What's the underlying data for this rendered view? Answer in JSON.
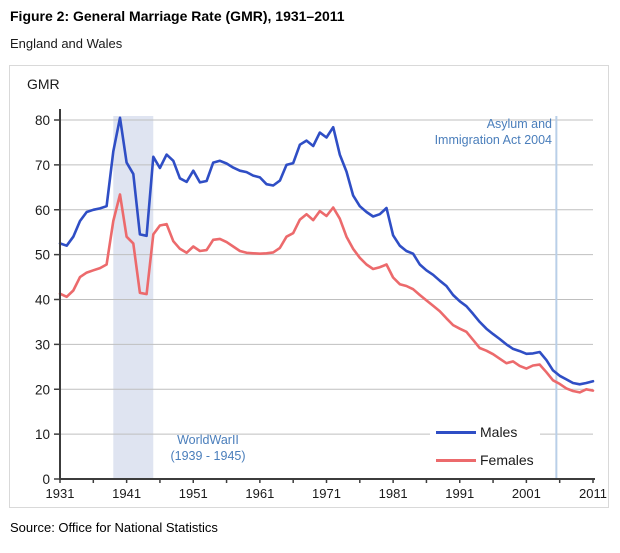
{
  "header": {
    "title": "Figure 2: General Marriage Rate (GMR), 1931–2011",
    "subtitle": "England and Wales"
  },
  "footer": {
    "source": "Source: Office for National Statistics"
  },
  "chart_data": {
    "type": "line",
    "ylabel": "GMR",
    "xlabel": "",
    "ylim": [
      0,
      80
    ],
    "ytick_interval": 10,
    "x_start": 1931,
    "x_end": 2011,
    "xticks_labeled": [
      1931,
      1941,
      1951,
      1961,
      1971,
      1981,
      1991,
      2001,
      2011
    ],
    "xtick_minor_interval": 5,
    "grid": "horizontal",
    "legend_position": "inside-bottom-right",
    "series": [
      {
        "name": "Males",
        "color": "#2f4ec5",
        "values": [
          52.5,
          52.0,
          54.0,
          57.5,
          59.5,
          60.0,
          60.3,
          60.8,
          73.0,
          80.5,
          70.5,
          68.0,
          54.5,
          54.2,
          71.8,
          69.3,
          72.3,
          70.9,
          67.0,
          66.2,
          68.7,
          66.1,
          66.4,
          70.5,
          70.9,
          70.3,
          69.4,
          68.7,
          68.4,
          67.6,
          67.2,
          65.7,
          65.4,
          66.5,
          70.0,
          70.4,
          74.5,
          75.4,
          74.2,
          77.2,
          76.1,
          78.4,
          72.3,
          68.5,
          63.2,
          60.8,
          59.5,
          58.5,
          59.0,
          60.4,
          54.3,
          52.0,
          50.8,
          50.2,
          47.8,
          46.5,
          45.5,
          44.2,
          43.0,
          41.0,
          39.6,
          38.5,
          36.8,
          35.0,
          33.5,
          32.3,
          31.2,
          30.0,
          29.0,
          28.5,
          27.9,
          28.0,
          28.3,
          26.5,
          24.2,
          23.0,
          22.2,
          21.4,
          21.1,
          21.4,
          21.8
        ]
      },
      {
        "name": "Females",
        "color": "#ec6a6c",
        "values": [
          41.3,
          40.6,
          42.0,
          45.0,
          46.0,
          46.5,
          47.0,
          47.8,
          57.5,
          63.4,
          54.0,
          52.5,
          41.5,
          41.2,
          54.5,
          56.5,
          56.8,
          53.0,
          51.3,
          50.4,
          51.8,
          50.8,
          51.0,
          53.3,
          53.5,
          52.8,
          51.8,
          50.8,
          50.4,
          50.3,
          50.2,
          50.3,
          50.5,
          51.5,
          54.0,
          54.8,
          57.8,
          59.0,
          57.7,
          59.7,
          58.6,
          60.5,
          58.0,
          54.0,
          51.3,
          49.3,
          47.8,
          46.8,
          47.2,
          47.8,
          44.9,
          43.4,
          43.0,
          42.3,
          41.0,
          39.8,
          38.6,
          37.4,
          35.8,
          34.3,
          33.5,
          32.8,
          31.0,
          29.2,
          28.6,
          27.8,
          26.8,
          25.8,
          26.2,
          25.2,
          24.6,
          25.3,
          25.5,
          23.8,
          22.0,
          21.2,
          20.2,
          19.6,
          19.3,
          20.0,
          19.7
        ]
      }
    ],
    "annotations": {
      "band": {
        "label_lines": [
          "WorldWarII",
          "(1939 - 1945)"
        ],
        "from_year": 1939,
        "to_year": 1945,
        "color": "#dfe4f1"
      },
      "vline": {
        "label_lines": [
          "Asylum and",
          "Immigration Act 2004"
        ],
        "year": 2005.5,
        "color": "#b9cfe8"
      }
    },
    "colors": {
      "grid": "#bfbfbf",
      "axis": "#3c3c3c",
      "annotation_text": "#4a7ebb",
      "tick_label": "#1a1a1a"
    }
  }
}
